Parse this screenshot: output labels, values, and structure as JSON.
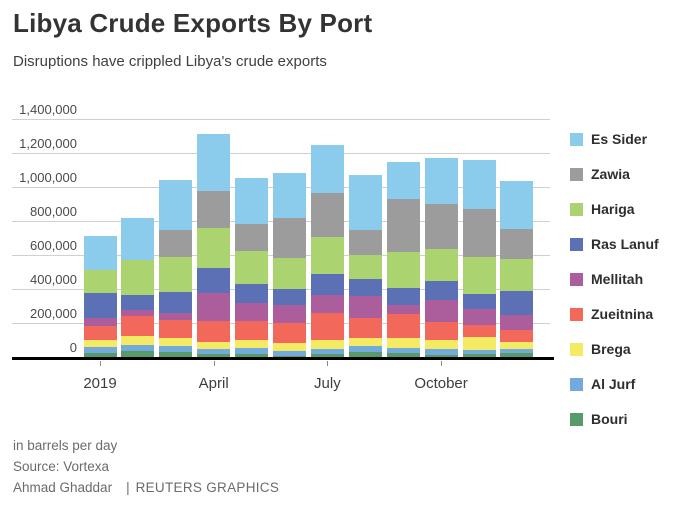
{
  "header": {
    "title": "Libya Crude Exports By Port",
    "subtitle": "Disruptions have crippled Libya's crude exports"
  },
  "chart_data": {
    "type": "bar",
    "stacked": true,
    "unit": "barrels per day",
    "title": "Libya Crude Exports By Port",
    "xlabel": "",
    "ylabel": "in barrels per day",
    "ylim": [
      0,
      1400000
    ],
    "grid": true,
    "legend_position": "right",
    "x": [
      "Jan 2019",
      "Feb 2019",
      "Mar 2019",
      "Apr 2019",
      "May 2019",
      "Jun 2019",
      "Jul 2019",
      "Aug 2019",
      "Sep 2019",
      "Oct 2019",
      "Nov 2019",
      "Dec 2019"
    ],
    "x_tick_labels": [
      "2019",
      "April",
      "July",
      "October"
    ],
    "x_tick_positions": [
      0,
      3,
      6,
      9
    ],
    "y_ticks": [
      {
        "value": 0,
        "label": "0"
      },
      {
        "value": 200000,
        "label": "200,000"
      },
      {
        "value": 400000,
        "label": "400,000"
      },
      {
        "value": 600000,
        "label": "600,000"
      },
      {
        "value": 800000,
        "label": "800,000"
      },
      {
        "value": 1000000,
        "label": "1,000,000"
      },
      {
        "value": 1200000,
        "label": "1,200,000"
      },
      {
        "value": 1400000,
        "label": "1,400,000"
      }
    ],
    "series": [
      {
        "name": "Es Sider",
        "color": "#8BCBEC",
        "values": [
          196000,
          245000,
          294000,
          333000,
          274000,
          265000,
          285000,
          319000,
          221000,
          274000,
          288000,
          284000
        ]
      },
      {
        "name": "Zawia",
        "color": "#9C9C9C",
        "values": [
          0,
          0,
          157000,
          216000,
          157000,
          239000,
          255000,
          147000,
          308000,
          265000,
          284000,
          175000
        ]
      },
      {
        "name": "Hariga",
        "color": "#ABD36F",
        "values": [
          137000,
          206000,
          206000,
          235000,
          196000,
          182000,
          221000,
          142000,
          215000,
          186000,
          216000,
          190000
        ]
      },
      {
        "name": "Ras Lanuf",
        "color": "#5B70B5",
        "values": [
          147000,
          88000,
          127000,
          151000,
          112000,
          92000,
          122000,
          103000,
          98000,
          112000,
          88000,
          140000
        ]
      },
      {
        "name": "Mellitah",
        "color": "#AB5D9C",
        "values": [
          49000,
          35000,
          40000,
          166000,
          103000,
          108000,
          107000,
          128000,
          55000,
          127000,
          94000,
          88000
        ]
      },
      {
        "name": "Zueitnina",
        "color": "#F2695C",
        "values": [
          78000,
          122000,
          107000,
          118000,
          114000,
          114000,
          157000,
          121000,
          141000,
          108000,
          73000,
          69000
        ]
      },
      {
        "name": "Brega",
        "color": "#F5EA64",
        "values": [
          44000,
          49000,
          43000,
          45000,
          43000,
          47000,
          55000,
          43000,
          55000,
          55000,
          74000,
          41000
        ]
      },
      {
        "name": "Al Jurf",
        "color": "#73AADC",
        "values": [
          35000,
          39000,
          39000,
          30000,
          36000,
          29000,
          30000,
          39000,
          34000,
          33000,
          26000,
          24000
        ]
      },
      {
        "name": "Bouri",
        "color": "#579B6B",
        "values": [
          30000,
          40000,
          33000,
          22000,
          25000,
          14000,
          22000,
          33000,
          27000,
          18000,
          22000,
          31000
        ]
      }
    ]
  },
  "footer": {
    "note": "in barrels per day",
    "source": "Source: Vortexa",
    "byline": "Ahmad Ghaddar",
    "separator": "|",
    "credit": "REUTERS GRAPHICS"
  }
}
